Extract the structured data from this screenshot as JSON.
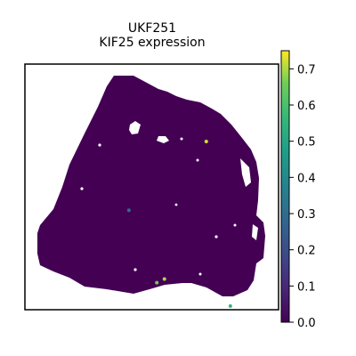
{
  "chart_data": {
    "type": "scatter",
    "title": "UKF251",
    "subtitle": "KIF25 expression",
    "xlabel": "",
    "ylabel": "",
    "grid": false,
    "colormap": "viridis",
    "background_value": 0.0,
    "highlight_points": [
      {
        "x": 0.715,
        "y": 0.315,
        "value": 0.72
      },
      {
        "x": 0.41,
        "y": 0.595,
        "value": 0.3
      },
      {
        "x": 0.55,
        "y": 0.875,
        "value": 0.7
      },
      {
        "x": 0.52,
        "y": 0.89,
        "value": 0.66
      },
      {
        "x": 0.81,
        "y": 0.985,
        "value": 0.55
      }
    ],
    "colorbar": {
      "min": 0.0,
      "max": 0.75,
      "ticks": [
        "0.0",
        "0.1",
        "0.2",
        "0.3",
        "0.4",
        "0.5",
        "0.6",
        "0.7"
      ]
    }
  }
}
